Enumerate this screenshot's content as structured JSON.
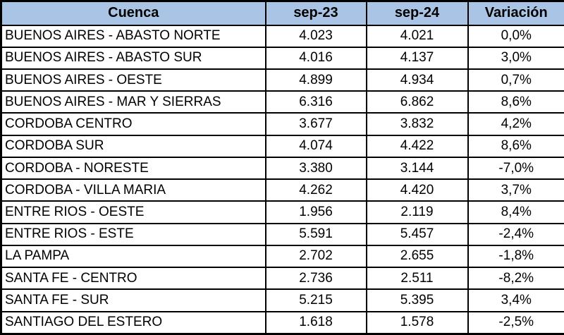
{
  "colors": {
    "header_bg": "#A9C4E4",
    "border": "#000000",
    "row_bg": "#FFFFFF",
    "text": "#000000"
  },
  "chart_data": {
    "type": "table",
    "title": "",
    "columns": [
      "Cuenca",
      "sep-23",
      "sep-24",
      "Variación"
    ],
    "rows": [
      [
        "BUENOS AIRES - ABASTO NORTE",
        "4.023",
        "4.021",
        "0,0%"
      ],
      [
        "BUENOS AIRES - ABASTO SUR",
        "4.016",
        "4.137",
        "3,0%"
      ],
      [
        "BUENOS AIRES - OESTE",
        "4.899",
        "4.934",
        "0,7%"
      ],
      [
        "BUENOS AIRES - MAR Y SIERRAS",
        "6.316",
        "6.862",
        "8,6%"
      ],
      [
        "CORDOBA CENTRO",
        "3.677",
        "3.832",
        "4,2%"
      ],
      [
        "CORDOBA SUR",
        "4.074",
        "4.422",
        "8,6%"
      ],
      [
        "CORDOBA - NORESTE",
        "3.380",
        "3.144",
        "-7,0%"
      ],
      [
        "CORDOBA - VILLA MARIA",
        "4.262",
        "4.420",
        "3,7%"
      ],
      [
        "ENTRE RIOS - OESTE",
        "1.956",
        "2.119",
        "8,4%"
      ],
      [
        "ENTRE RIOS - ESTE",
        "5.591",
        "5.457",
        "-2,4%"
      ],
      [
        "LA PAMPA",
        "2.702",
        "2.655",
        "-1,8%"
      ],
      [
        "SANTA FE - CENTRO",
        "2.736",
        "2.511",
        "-8,2%"
      ],
      [
        "SANTA FE - SUR",
        "5.215",
        "5.395",
        "3,4%"
      ],
      [
        "SANTIAGO DEL ESTERO",
        "1.618",
        "1.578",
        "-2,5%"
      ]
    ]
  }
}
